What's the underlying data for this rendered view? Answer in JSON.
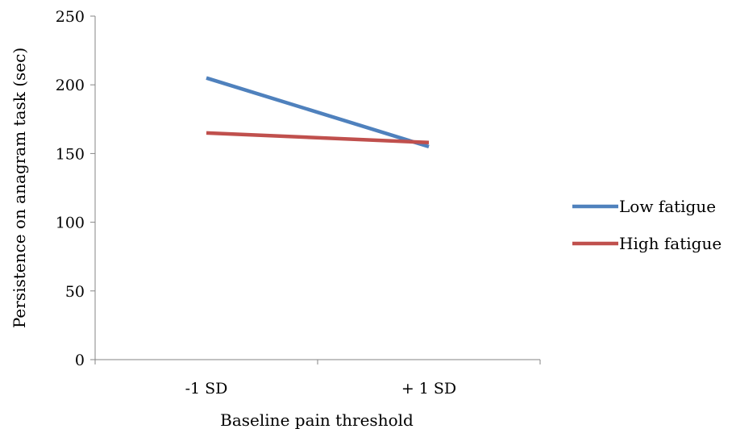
{
  "chart_data": {
    "type": "line",
    "title": "",
    "xlabel": "Baseline pain threshold",
    "ylabel": "Persistence on anagram task (sec)",
    "categories": [
      "-1 SD",
      "+ 1 SD"
    ],
    "ylim": [
      0,
      250
    ],
    "yticks": [
      0,
      50,
      100,
      150,
      200,
      250
    ],
    "grid": false,
    "legend_position": "right",
    "series": [
      {
        "name": "Low fatigue",
        "values": [
          205,
          155
        ],
        "color": "#4f81bd"
      },
      {
        "name": "High fatigue",
        "values": [
          165,
          158
        ],
        "color": "#c0504d"
      }
    ]
  }
}
